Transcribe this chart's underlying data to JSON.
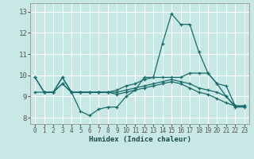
{
  "xlabel": "Humidex (Indice chaleur)",
  "xlim": [
    -0.5,
    23.5
  ],
  "ylim": [
    7.7,
    13.4
  ],
  "yticks": [
    8,
    9,
    10,
    11,
    12,
    13
  ],
  "xticks": [
    0,
    1,
    2,
    3,
    4,
    5,
    6,
    7,
    8,
    9,
    10,
    11,
    12,
    13,
    14,
    15,
    16,
    17,
    18,
    19,
    20,
    21,
    22,
    23
  ],
  "bg_color": "#c8e8e5",
  "grid_color": "#ffffff",
  "line_color": "#1a6b6b",
  "lines": [
    {
      "comment": "line with deep dip then high peak",
      "x": [
        0,
        1,
        2,
        3,
        4,
        5,
        6,
        7,
        8,
        9,
        10,
        11,
        12,
        13,
        14,
        15,
        16,
        17,
        18,
        19,
        20,
        21,
        22,
        23
      ],
      "y": [
        9.9,
        9.2,
        9.2,
        9.9,
        9.2,
        8.3,
        8.1,
        8.4,
        8.5,
        8.5,
        9.0,
        9.3,
        9.9,
        9.9,
        11.5,
        12.9,
        12.4,
        12.4,
        11.1,
        10.1,
        9.6,
        9.0,
        8.5,
        8.5
      ]
    },
    {
      "comment": "line starting flat near 10, then peak at 15",
      "x": [
        0,
        1,
        2,
        3,
        4,
        5,
        6,
        7,
        8,
        9,
        10,
        11,
        12,
        13,
        14,
        15,
        16,
        17,
        18,
        19,
        20,
        21,
        22,
        23
      ],
      "y": [
        9.9,
        9.2,
        9.2,
        9.9,
        9.2,
        9.2,
        9.2,
        9.2,
        9.2,
        9.3,
        9.5,
        9.6,
        9.8,
        9.9,
        9.9,
        9.9,
        9.9,
        10.1,
        10.1,
        10.1,
        9.6,
        9.5,
        8.55,
        8.55
      ]
    },
    {
      "comment": "gradually declining line",
      "x": [
        0,
        1,
        2,
        3,
        4,
        5,
        6,
        7,
        8,
        9,
        10,
        11,
        12,
        13,
        14,
        15,
        16,
        17,
        18,
        19,
        20,
        21,
        22,
        23
      ],
      "y": [
        9.2,
        9.2,
        9.2,
        9.6,
        9.2,
        9.2,
        9.2,
        9.2,
        9.2,
        9.2,
        9.3,
        9.4,
        9.5,
        9.6,
        9.7,
        9.8,
        9.7,
        9.6,
        9.4,
        9.3,
        9.2,
        9.0,
        8.55,
        8.55
      ]
    },
    {
      "comment": "lowest descending line",
      "x": [
        1,
        2,
        3,
        4,
        5,
        6,
        7,
        8,
        9,
        10,
        11,
        12,
        13,
        14,
        15,
        16,
        17,
        18,
        19,
        20,
        21,
        22,
        23
      ],
      "y": [
        9.2,
        9.2,
        9.6,
        9.2,
        9.2,
        9.2,
        9.2,
        9.2,
        9.1,
        9.2,
        9.3,
        9.4,
        9.5,
        9.6,
        9.7,
        9.6,
        9.4,
        9.2,
        9.1,
        8.9,
        8.7,
        8.55,
        8.55
      ]
    }
  ]
}
